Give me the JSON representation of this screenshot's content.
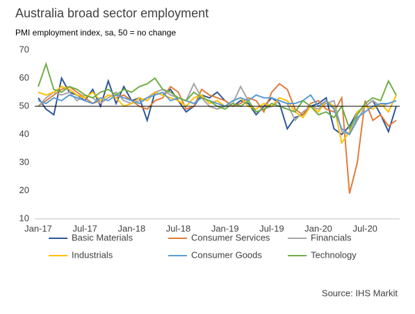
{
  "chart_data": {
    "type": "line",
    "title": "Australia broad sector employment",
    "subtitle": "PMI employment index, sa, 50 = no change",
    "source": "Source: IHS Markit",
    "categories": [
      "Jan-17",
      null,
      null,
      null,
      null,
      null,
      "Jul-17",
      null,
      null,
      null,
      null,
      null,
      "Jan-18",
      null,
      null,
      null,
      null,
      null,
      "Jul-18",
      null,
      null,
      null,
      null,
      null,
      "Jan-19",
      null,
      null,
      null,
      null,
      null,
      "Jul-19",
      null,
      null,
      null,
      null,
      null,
      "Jan-20",
      null,
      null,
      null,
      null,
      null,
      "Jul-20",
      null,
      null,
      null,
      null
    ],
    "ylim": [
      10,
      70
    ],
    "yticks": [
      10,
      20,
      30,
      40,
      50,
      60,
      70
    ],
    "reference_line": 50,
    "series": [
      {
        "name": "Basic Materials",
        "color": "#2e5597",
        "values": [
          53,
          49,
          47,
          60,
          55,
          54,
          52,
          56,
          50,
          59,
          51,
          57,
          52,
          53,
          45,
          55,
          54,
          56,
          52,
          48,
          50,
          54,
          53,
          55,
          52,
          50,
          52,
          51,
          47,
          50,
          53,
          51,
          42,
          46,
          47,
          50,
          51,
          53,
          42,
          40,
          43,
          48,
          50,
          52,
          47,
          41,
          50
        ]
      },
      {
        "name": "Consumer Services",
        "color": "#e07b39",
        "values": [
          50,
          52,
          54,
          56,
          57,
          55,
          53,
          51,
          52,
          54,
          53,
          54,
          52,
          50,
          49,
          52,
          53,
          57,
          55,
          49,
          50,
          56,
          54,
          53,
          52,
          50,
          51,
          53,
          52,
          48,
          55,
          58,
          56,
          49,
          47,
          51,
          52,
          49,
          48,
          53,
          19,
          30,
          52,
          45,
          47,
          43,
          45
        ]
      },
      {
        "name": "Financials",
        "color": "#a5a5a5",
        "values": [
          50,
          53,
          55,
          54,
          55,
          52,
          54,
          53,
          51,
          53,
          55,
          52,
          51,
          52,
          53,
          55,
          56,
          54,
          53,
          52,
          58,
          53,
          50,
          49,
          50,
          51,
          57,
          52,
          48,
          49,
          50,
          52,
          51,
          45,
          48,
          50,
          49,
          51,
          52,
          41,
          40,
          45,
          50,
          52,
          50,
          51,
          52
        ]
      },
      {
        "name": "Industrials",
        "color": "#ffc000",
        "values": [
          55,
          54,
          55,
          57,
          56,
          54,
          53,
          55,
          52,
          54,
          53,
          50,
          51,
          53,
          52,
          55,
          54,
          53,
          52,
          50,
          53,
          54,
          51,
          52,
          50,
          52,
          53,
          50,
          49,
          51,
          50,
          53,
          52,
          48,
          46,
          50,
          48,
          52,
          50,
          37,
          41,
          48,
          50,
          49,
          51,
          48,
          54
        ]
      },
      {
        "name": "Consumer Goods",
        "color": "#5b9bd5",
        "values": [
          52,
          51,
          53,
          52,
          54,
          53,
          52,
          51,
          53,
          52,
          54,
          53,
          52,
          51,
          53,
          54,
          55,
          52,
          53,
          52,
          51,
          53,
          52,
          51,
          50,
          52,
          53,
          52,
          54,
          53,
          53,
          52,
          51,
          51,
          52,
          54,
          50,
          52,
          49,
          42,
          40,
          46,
          48,
          50,
          51,
          51,
          52
        ]
      },
      {
        "name": "Technology",
        "color": "#70ad47",
        "values": [
          57,
          65,
          56,
          55,
          57,
          56,
          54,
          53,
          55,
          56,
          54,
          56,
          55,
          57,
          58,
          60,
          56,
          55,
          53,
          52,
          55,
          53,
          52,
          50,
          49,
          51,
          50,
          52,
          48,
          49,
          51,
          50,
          49,
          48,
          52,
          50,
          47,
          48,
          46,
          50,
          42,
          47,
          51,
          53,
          52,
          59,
          54
        ]
      }
    ]
  }
}
